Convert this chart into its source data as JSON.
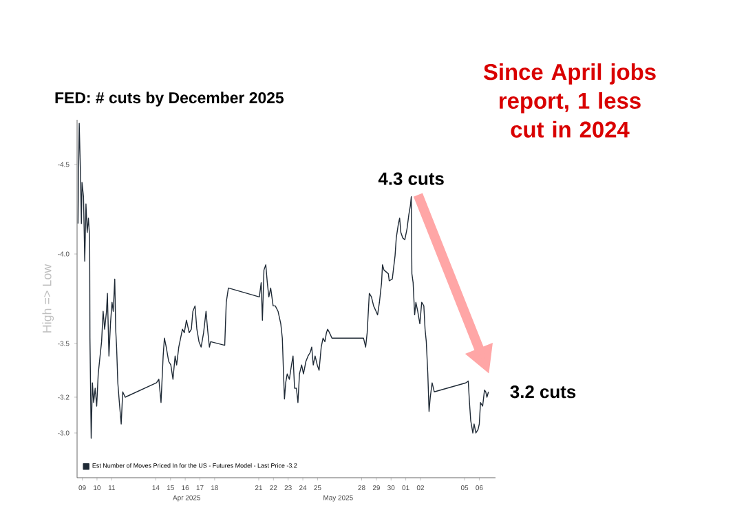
{
  "chart_data": {
    "type": "line",
    "title": "FED: # cuts by December 2025",
    "ylabel": "High => Low",
    "x": [
      "2025-04-08T17:00",
      "2025-04-08T18:00",
      "2025-04-08T19:00",
      "2025-04-08T21:00",
      "2025-04-08T22:30",
      "2025-04-08T23:30",
      "2025-04-09T02:00",
      "2025-04-09T04:00",
      "2025-04-09T06:00",
      "2025-04-09T08:00",
      "2025-04-09T10:00",
      "2025-04-09T12:00",
      "2025-04-09T12:30",
      "2025-04-09T14:30",
      "2025-04-09T16:30",
      "2025-04-09T18:30",
      "2025-04-09T21:00",
      "2025-04-09T23:30",
      "2025-04-10T02:00",
      "2025-04-10T05:00",
      "2025-04-10T07:30",
      "2025-04-10T10:00",
      "2025-04-10T12:30",
      "2025-04-10T15:30",
      "2025-04-10T17:00",
      "2025-04-10T19:30",
      "2025-04-10T22:00",
      "2025-04-11T00:30",
      "2025-04-11T02:30",
      "2025-04-11T05:00",
      "2025-04-11T06:30",
      "2025-04-11T08:00",
      "2025-04-11T10:00",
      "2025-04-11T12:30",
      "2025-04-11T15:30",
      "2025-04-11T18:00",
      "2025-04-11T22:00",
      "2025-04-14T01:00",
      "2025-04-14T05:00",
      "2025-04-14T08:30",
      "2025-04-14T12:00",
      "2025-04-14T14:00",
      "2025-04-14T17:00",
      "2025-04-14T21:00",
      "2025-04-15T00:30",
      "2025-04-15T04:00",
      "2025-04-15T07:30",
      "2025-04-15T10:00",
      "2025-04-15T13:30",
      "2025-04-15T16:30",
      "2025-04-15T19:30",
      "2025-04-15T22:30",
      "2025-04-16T02:00",
      "2025-04-16T06:30",
      "2025-04-16T10:00",
      "2025-04-16T12:30",
      "2025-04-16T16:00",
      "2025-04-16T19:00",
      "2025-04-16T22:30",
      "2025-04-17T02:00",
      "2025-04-17T06:00",
      "2025-04-17T10:00",
      "2025-04-17T12:30",
      "2025-04-17T15:30",
      "2025-04-17T17:30",
      "2025-04-18T16:30",
      "2025-04-18T19:00",
      "2025-04-18T22:30",
      "2025-04-21T01:00",
      "2025-04-21T04:00",
      "2025-04-21T06:00",
      "2025-04-21T08:30",
      "2025-04-21T11:30",
      "2025-04-21T14:00",
      "2025-04-21T16:30",
      "2025-04-21T19:30",
      "2025-04-21T23:30",
      "2025-04-22T03:00",
      "2025-04-22T07:30",
      "2025-04-22T12:00",
      "2025-04-22T14:30",
      "2025-04-22T16:30",
      "2025-04-22T18:00",
      "2025-04-22T20:00",
      "2025-04-22T22:30",
      "2025-04-23T02:00",
      "2025-04-23T05:30",
      "2025-04-23T08:00",
      "2025-04-23T10:30",
      "2025-04-23T13:30",
      "2025-04-23T16:00",
      "2025-04-23T18:30",
      "2025-04-23T22:00",
      "2025-04-24T01:00",
      "2025-04-24T05:00",
      "2025-04-24T08:30",
      "2025-04-24T12:00",
      "2025-04-24T14:30",
      "2025-04-24T17:00",
      "2025-04-24T20:00",
      "2025-04-24T23:30",
      "2025-04-25T02:30",
      "2025-04-25T06:00",
      "2025-04-25T09:00",
      "2025-04-25T12:00",
      "2025-04-25T14:30",
      "2025-04-25T16:30",
      "2025-04-25T19:30",
      "2025-04-25T23:30",
      "2025-04-28T03:00",
      "2025-04-28T06:30",
      "2025-04-28T09:00",
      "2025-04-28T12:30",
      "2025-04-28T16:00",
      "2025-04-28T19:30",
      "2025-04-28T23:30",
      "2025-04-29T02:00",
      "2025-04-29T05:00",
      "2025-04-29T08:30",
      "2025-04-29T10:00",
      "2025-04-29T12:30",
      "2025-04-29T19:30",
      "2025-04-29T21:00",
      "2025-04-30T02:00",
      "2025-04-30T06:30",
      "2025-04-30T08:30",
      "2025-04-30T12:00",
      "2025-04-30T14:00",
      "2025-04-30T16:00",
      "2025-04-30T19:00",
      "2025-04-30T22:30",
      "2025-05-01T02:00",
      "2025-05-01T05:00",
      "2025-05-01T07:30",
      "2025-05-01T09:00",
      "2025-05-01T10:00",
      "2025-05-01T12:00",
      "2025-05-01T14:30",
      "2025-05-01T16:30",
      "2025-05-01T19:30",
      "2025-05-01T23:00",
      "2025-05-02T02:00",
      "2025-05-02T05:30",
      "2025-05-02T07:30",
      "2025-05-02T09:30",
      "2025-05-02T12:00",
      "2025-05-02T14:00",
      "2025-05-02T16:00",
      "2025-05-02T19:00",
      "2025-05-02T22:30",
      "2025-05-05T02:00",
      "2025-05-05T06:00",
      "2025-05-05T08:00",
      "2025-05-05T10:00",
      "2025-05-05T13:30",
      "2025-05-05T15:30",
      "2025-05-05T18:30",
      "2025-05-05T22:00",
      "2025-05-06T00:00",
      "2025-05-06T02:00",
      "2025-05-06T05:30",
      "2025-05-06T08:30",
      "2025-05-06T10:30",
      "2025-05-06T12:30",
      "2025-05-06T15:00"
    ],
    "series": [
      {
        "name": "Est Number of Moves Priced In for the US - Futures Model - Last Price -3.2",
        "color": "#1f2a36",
        "values": [
          -4.17,
          -4.5,
          -4.73,
          -4.45,
          -4.17,
          -4.4,
          -4.32,
          -3.96,
          -4.28,
          -4.12,
          -4.2,
          -4.09,
          -3.53,
          -2.97,
          -3.28,
          -3.17,
          -3.25,
          -3.15,
          -3.33,
          -3.43,
          -3.51,
          -3.68,
          -3.58,
          -3.68,
          -3.78,
          -3.43,
          -3.61,
          -3.73,
          -3.68,
          -3.86,
          -3.58,
          -3.48,
          -3.28,
          -3.17,
          -3.05,
          -3.23,
          -3.2,
          -3.28,
          -3.3,
          -3.17,
          -3.43,
          -3.53,
          -3.48,
          -3.4,
          -3.38,
          -3.3,
          -3.43,
          -3.38,
          -3.48,
          -3.53,
          -3.58,
          -3.56,
          -3.63,
          -3.56,
          -3.58,
          -3.68,
          -3.71,
          -3.58,
          -3.51,
          -3.48,
          -3.56,
          -3.68,
          -3.58,
          -3.48,
          -3.51,
          -3.49,
          -3.73,
          -3.81,
          -3.76,
          -3.84,
          -3.63,
          -3.91,
          -3.94,
          -3.84,
          -3.76,
          -3.81,
          -3.71,
          -3.71,
          -3.68,
          -3.61,
          -3.53,
          -3.33,
          -3.19,
          -3.28,
          -3.33,
          -3.3,
          -3.38,
          -3.43,
          -3.25,
          -3.25,
          -3.17,
          -3.33,
          -3.38,
          -3.33,
          -3.4,
          -3.43,
          -3.45,
          -3.48,
          -3.38,
          -3.43,
          -3.38,
          -3.35,
          -3.48,
          -3.53,
          -3.51,
          -3.56,
          -3.58,
          -3.56,
          -3.53,
          -3.53,
          -3.48,
          -3.56,
          -3.78,
          -3.76,
          -3.71,
          -3.68,
          -3.66,
          -3.73,
          -3.84,
          -3.94,
          -3.91,
          -3.89,
          -3.85,
          -3.86,
          -3.99,
          -4.09,
          -4.17,
          -4.2,
          -4.12,
          -4.09,
          -4.08,
          -4.14,
          -4.22,
          -4.27,
          -4.32,
          -3.89,
          -3.84,
          -3.66,
          -3.73,
          -3.68,
          -3.61,
          -3.73,
          -3.71,
          -3.58,
          -3.51,
          -3.33,
          -3.12,
          -3.2,
          -3.28,
          -3.23,
          -3.28,
          -3.29,
          -3.17,
          -3.07,
          -3.0,
          -3.05,
          -3.0,
          -3.02,
          -3.05,
          -3.17,
          -3.15,
          -3.24,
          -3.23,
          -3.2,
          -3.23
        ]
      }
    ],
    "xlim": [
      "2025-04-08T15:30",
      "2025-05-07T02:30"
    ],
    "ylim": [
      -2.75,
      -4.75
    ],
    "xticks": [
      {
        "value": "2025-04-09",
        "label": "09"
      },
      {
        "value": "2025-04-10",
        "label": "10"
      },
      {
        "value": "2025-04-11",
        "label": "11"
      },
      {
        "value": "2025-04-14",
        "label": "14"
      },
      {
        "value": "2025-04-15",
        "label": "15"
      },
      {
        "value": "2025-04-16",
        "label": "16"
      },
      {
        "value": "2025-04-17",
        "label": "17"
      },
      {
        "value": "2025-04-18",
        "label": "18"
      },
      {
        "value": "2025-04-21",
        "label": "21"
      },
      {
        "value": "2025-04-22",
        "label": "22"
      },
      {
        "value": "2025-04-23",
        "label": "23"
      },
      {
        "value": "2025-04-24",
        "label": "24"
      },
      {
        "value": "2025-04-25",
        "label": "25"
      },
      {
        "value": "2025-04-28",
        "label": "28"
      },
      {
        "value": "2025-04-29",
        "label": "29"
      },
      {
        "value": "2025-04-30",
        "label": "30"
      },
      {
        "value": "2025-05-01",
        "label": "01"
      },
      {
        "value": "2025-05-02",
        "label": "02"
      },
      {
        "value": "2025-05-05",
        "label": "05"
      },
      {
        "value": "2025-05-06",
        "label": "06"
      }
    ],
    "yticks": [
      -4.5,
      {
        "value": -4.0,
        "label": "-4.0"
      },
      -3.5,
      -3.2,
      {
        "value": -3.0,
        "label": "-3.0"
      }
    ],
    "legend": "bottom left",
    "marker": "none",
    "line_style": "solid",
    "grid": false,
    "annotations": [
      "Since April jobs report, 1 less cut in 2024",
      {
        "text": "4.3 cuts",
        "x": "2025-05-01T09:00",
        "y": -4.32
      },
      {
        "text": "3.2 cuts",
        "x": "2025-05-06T15:00",
        "y": -3.23
      },
      "Apr 2025",
      "May 2025"
    ]
  }
}
